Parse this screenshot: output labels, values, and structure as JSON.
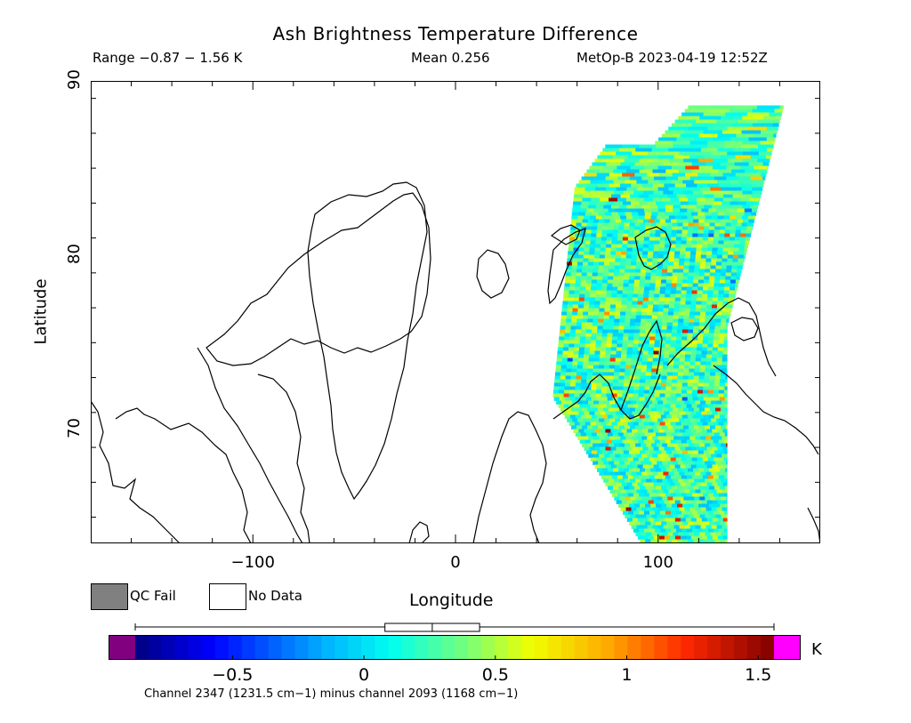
{
  "title": "Ash Brightness Temperature Difference",
  "header": {
    "range": "Range −0.87 − 1.56 K",
    "mean": "Mean 0.256",
    "satellite": "MetOp-B 2023-04-19 12:52Z"
  },
  "axes": {
    "xlabel": "Longitude",
    "ylabel": "Latitude",
    "xlim": [
      -180,
      180
    ],
    "ylim": [
      63.5,
      90
    ],
    "xticks": [
      {
        "v": -100,
        "label": "−100"
      },
      {
        "v": 0,
        "label": "0"
      },
      {
        "v": 100,
        "label": "100"
      }
    ],
    "yticks": [
      {
        "v": 70,
        "label": "70"
      },
      {
        "v": 80,
        "label": "80"
      },
      {
        "v": 90,
        "label": "90"
      }
    ]
  },
  "legend": {
    "qc_fail": "QC Fail",
    "no_data": "No Data",
    "qc_color": "#808080"
  },
  "colorbar": {
    "unit": "K",
    "vmin": -0.87,
    "vmax": 1.56,
    "box_q1": 0.08,
    "box_median": 0.26,
    "box_q3": 0.44,
    "ticks": [
      {
        "v": -0.5,
        "label": "−0.5"
      },
      {
        "v": 0,
        "label": "0"
      },
      {
        "v": 0.5,
        "label": "0.5"
      },
      {
        "v": 1,
        "label": "1"
      },
      {
        "v": 1.5,
        "label": "1.5"
      }
    ],
    "under_color": "#800080",
    "over_color": "#ff00ff",
    "caption": "Channel 2347 (1231.5 cm−1) minus channel 2093 (1168 cm−1)"
  },
  "map": {
    "projection": "cylindrical lat-lon",
    "coastlines": "black outline",
    "swath": "satellite swath over northern Siberia and Arctic Ocean, lon ~48 to 160, lat ~63.5 to 88.5"
  }
}
